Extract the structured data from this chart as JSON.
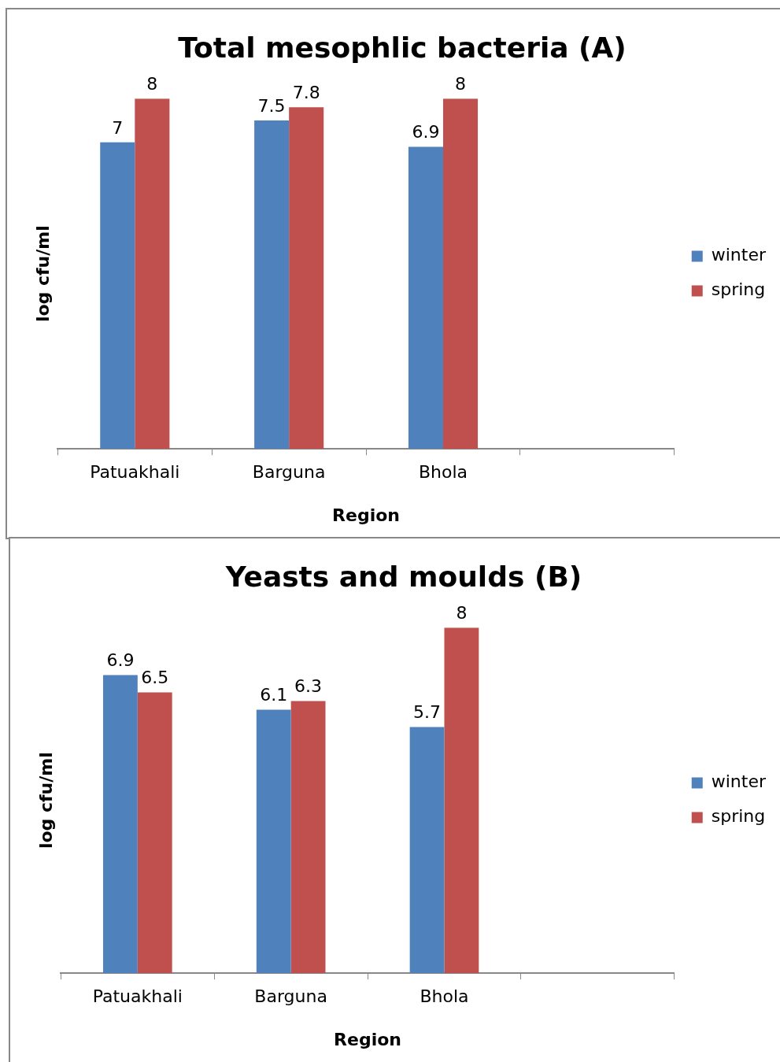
{
  "chart_data": [
    {
      "type": "bar",
      "title": "Total mesophlic bacteria (A)",
      "xlabel": "Region",
      "ylabel": "log cfu/ml",
      "categories": [
        "Patuakhali",
        "Barguna",
        "Bhola",
        null
      ],
      "series": [
        {
          "name": "winter",
          "color": "#4f81bd",
          "values": [
            7,
            7.5,
            6.9,
            null
          ]
        },
        {
          "name": "spring",
          "color": "#c0504d",
          "values": [
            8,
            7.8,
            8,
            null
          ]
        }
      ],
      "data_labels": true,
      "legend": "right",
      "grid": false
    },
    {
      "type": "bar",
      "title": "Yeasts and moulds (B)",
      "xlabel": "Region",
      "ylabel": "log cfu/ml",
      "categories": [
        "Patuakhali",
        "Barguna",
        "Bhola",
        null
      ],
      "series": [
        {
          "name": "winter",
          "color": "#4f81bd",
          "values": [
            6.9,
            6.1,
            5.7,
            null
          ]
        },
        {
          "name": "spring",
          "color": "#c0504d",
          "values": [
            6.5,
            6.3,
            8,
            null
          ]
        }
      ],
      "data_labels": true,
      "legend": "right",
      "grid": false
    }
  ]
}
